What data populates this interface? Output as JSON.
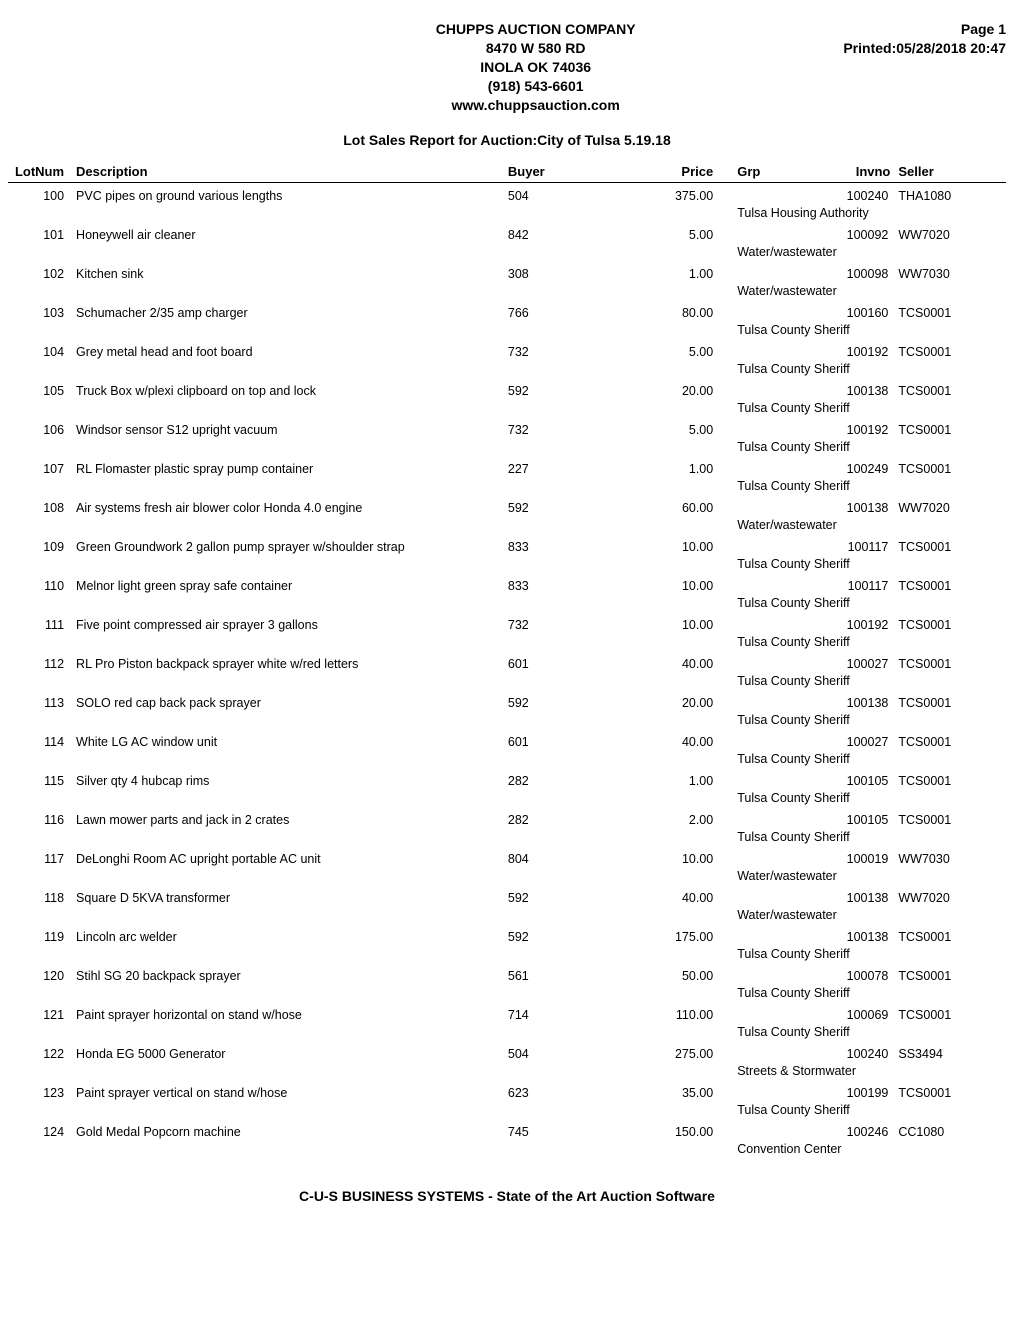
{
  "header": {
    "company": "CHUPPS AUCTION COMPANY",
    "address1": "8470 W 580 RD",
    "address2": "INOLA OK 74036",
    "phone": "(918) 543-6601",
    "website": "www.chuppsauction.com",
    "page": "Page 1",
    "printed": "Printed:05/28/2018 20:47"
  },
  "reportTitle": "Lot Sales Report for Auction:City of Tulsa 5.19.18",
  "columns": {
    "lot": "LotNum",
    "desc": "Description",
    "buyer": "Buyer",
    "price": "Price",
    "grp": "Grp",
    "invno": "Invno",
    "seller": "Seller"
  },
  "rows": [
    {
      "lot": "100",
      "desc": "PVC pipes on ground various lengths",
      "buyer": "504",
      "price": "375.00",
      "invno": "100240",
      "seller": "THA1080",
      "sellername": "Tulsa Housing Authority"
    },
    {
      "lot": "101",
      "desc": "Honeywell air cleaner",
      "buyer": "842",
      "price": "5.00",
      "invno": "100092",
      "seller": "WW7020",
      "sellername": "Water/wastewater"
    },
    {
      "lot": "102",
      "desc": "Kitchen sink",
      "buyer": "308",
      "price": "1.00",
      "invno": "100098",
      "seller": "WW7030",
      "sellername": "Water/wastewater"
    },
    {
      "lot": "103",
      "desc": "Schumacher 2/35 amp charger",
      "buyer": "766",
      "price": "80.00",
      "invno": "100160",
      "seller": "TCS0001",
      "sellername": "Tulsa County Sheriff"
    },
    {
      "lot": "104",
      "desc": "Grey metal head and foot board",
      "buyer": "732",
      "price": "5.00",
      "invno": "100192",
      "seller": "TCS0001",
      "sellername": "Tulsa County Sheriff"
    },
    {
      "lot": "105",
      "desc": "Truck Box w/plexi clipboard on top and lock",
      "buyer": "592",
      "price": "20.00",
      "invno": "100138",
      "seller": "TCS0001",
      "sellername": "Tulsa County Sheriff"
    },
    {
      "lot": "106",
      "desc": "Windsor sensor S12 upright vacuum",
      "buyer": "732",
      "price": "5.00",
      "invno": "100192",
      "seller": "TCS0001",
      "sellername": "Tulsa County Sheriff"
    },
    {
      "lot": "107",
      "desc": "RL Flomaster plastic spray pump container",
      "buyer": "227",
      "price": "1.00",
      "invno": "100249",
      "seller": "TCS0001",
      "sellername": "Tulsa County Sheriff"
    },
    {
      "lot": "108",
      "desc": "Air systems fresh air blower color Honda 4.0 engine",
      "buyer": "592",
      "price": "60.00",
      "invno": "100138",
      "seller": "WW7020",
      "sellername": "Water/wastewater"
    },
    {
      "lot": "109",
      "desc": "Green Groundwork 2 gallon pump sprayer w/shoulder strap",
      "buyer": "833",
      "price": "10.00",
      "invno": "100117",
      "seller": "TCS0001",
      "sellername": "Tulsa County Sheriff"
    },
    {
      "lot": "110",
      "desc": "Melnor light green spray safe container",
      "buyer": "833",
      "price": "10.00",
      "invno": "100117",
      "seller": "TCS0001",
      "sellername": "Tulsa County Sheriff"
    },
    {
      "lot": "111",
      "desc": "Five point compressed air sprayer 3 gallons",
      "buyer": "732",
      "price": "10.00",
      "invno": "100192",
      "seller": "TCS0001",
      "sellername": "Tulsa County Sheriff"
    },
    {
      "lot": "112",
      "desc": "RL Pro Piston backpack sprayer white w/red letters",
      "buyer": "601",
      "price": "40.00",
      "invno": "100027",
      "seller": "TCS0001",
      "sellername": "Tulsa County Sheriff"
    },
    {
      "lot": "113",
      "desc": "SOLO red cap back pack sprayer",
      "buyer": "592",
      "price": "20.00",
      "invno": "100138",
      "seller": "TCS0001",
      "sellername": "Tulsa County Sheriff"
    },
    {
      "lot": "114",
      "desc": "White LG AC window unit",
      "buyer": "601",
      "price": "40.00",
      "invno": "100027",
      "seller": "TCS0001",
      "sellername": "Tulsa County Sheriff"
    },
    {
      "lot": "115",
      "desc": "Silver qty 4 hubcap rims",
      "buyer": "282",
      "price": "1.00",
      "invno": "100105",
      "seller": "TCS0001",
      "sellername": "Tulsa County Sheriff"
    },
    {
      "lot": "116",
      "desc": "Lawn mower parts and jack in 2 crates",
      "buyer": "282",
      "price": "2.00",
      "invno": "100105",
      "seller": "TCS0001",
      "sellername": "Tulsa County Sheriff"
    },
    {
      "lot": "117",
      "desc": "DeLonghi Room AC upright portable AC unit",
      "buyer": "804",
      "price": "10.00",
      "invno": "100019",
      "seller": "WW7030",
      "sellername": "Water/wastewater"
    },
    {
      "lot": "118",
      "desc": "Square D 5KVA transformer",
      "buyer": "592",
      "price": "40.00",
      "invno": "100138",
      "seller": "WW7020",
      "sellername": "Water/wastewater"
    },
    {
      "lot": "119",
      "desc": "Lincoln arc welder",
      "buyer": "592",
      "price": "175.00",
      "invno": "100138",
      "seller": "TCS0001",
      "sellername": "Tulsa County Sheriff"
    },
    {
      "lot": "120",
      "desc": "Stihl SG 20 backpack sprayer",
      "buyer": "561",
      "price": "50.00",
      "invno": "100078",
      "seller": "TCS0001",
      "sellername": "Tulsa County Sheriff"
    },
    {
      "lot": "121",
      "desc": "Paint sprayer horizontal on stand w/hose",
      "buyer": "714",
      "price": "110.00",
      "invno": "100069",
      "seller": "TCS0001",
      "sellername": "Tulsa County Sheriff"
    },
    {
      "lot": "122",
      "desc": "Honda EG 5000 Generator",
      "buyer": "504",
      "price": "275.00",
      "invno": "100240",
      "seller": "SS3494",
      "sellername": "Streets & Stormwater"
    },
    {
      "lot": "123",
      "desc": "Paint sprayer vertical on stand w/hose",
      "buyer": "623",
      "price": "35.00",
      "invno": "100199",
      "seller": "TCS0001",
      "sellername": "Tulsa County Sheriff"
    },
    {
      "lot": "124",
      "desc": "Gold Medal Popcorn machine",
      "buyer": "745",
      "price": "150.00",
      "invno": "100246",
      "seller": "CC1080",
      "sellername": "Convention Center"
    }
  ],
  "footer": "C-U-S BUSINESS SYSTEMS - State of the Art Auction Software"
}
